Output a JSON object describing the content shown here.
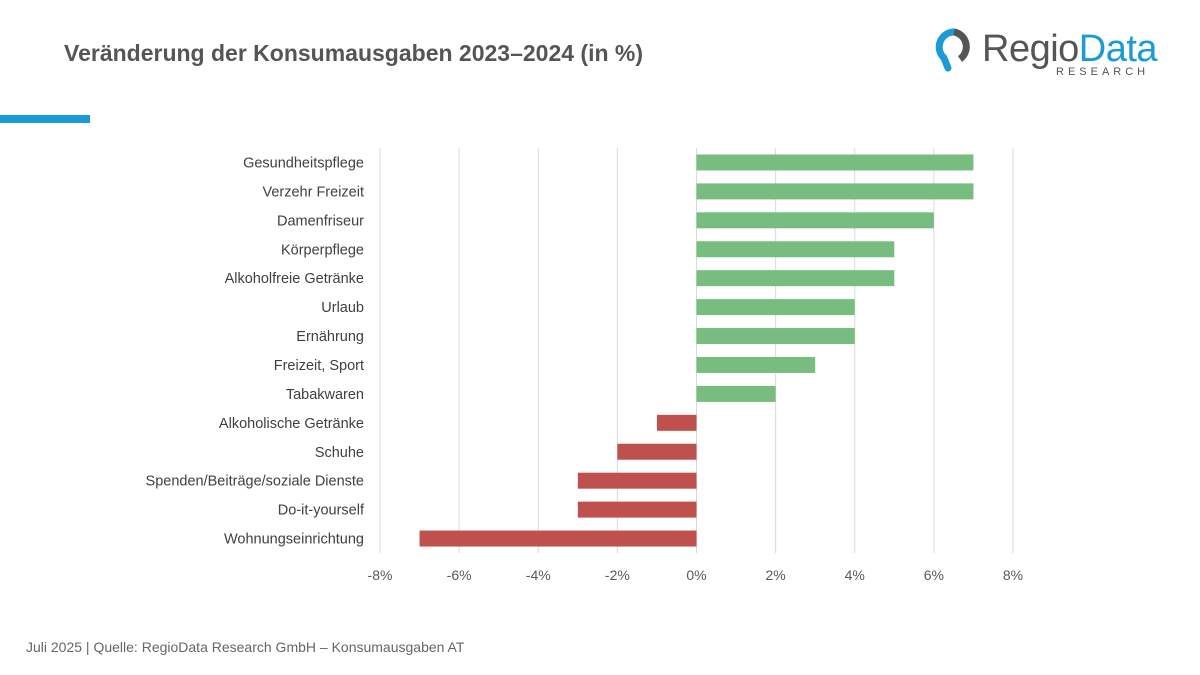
{
  "header": {
    "title": "Veränderung der Konsumausgaben 2023–2024 (in %)"
  },
  "logo": {
    "text_main": "Regio",
    "text_accent": "Data",
    "sub": "RESEARCH"
  },
  "footer": {
    "text": "Juli 2025 | Quelle: RegioData Research GmbH – Konsumausgaben AT"
  },
  "colors": {
    "positive": "#77bd7f",
    "negative": "#c0504d",
    "accent": "#1a9ad6"
  },
  "chart_data": {
    "type": "bar",
    "orientation": "horizontal",
    "title": "Veränderung der Konsumausgaben 2023–2024 (in %)",
    "categories": [
      "Gesundheitspflege",
      "Verzehr Freizeit",
      "Damenfriseur",
      "Körperpflege",
      "Alkoholfreie Getränke",
      "Urlaub",
      "Ernährung",
      "Freizeit, Sport",
      "Tabakwaren",
      "Alkoholische Getränke",
      "Schuhe",
      "Spenden/Beiträge/soziale Dienste",
      "Do-it-yourself",
      "Wohnungseinrichtung"
    ],
    "values": [
      7,
      7,
      6,
      5,
      5,
      4,
      4,
      3,
      2,
      -1,
      -2,
      -3,
      -3,
      -7
    ],
    "xlim": [
      -8,
      8
    ],
    "xticks": [
      -8,
      -6,
      -4,
      -2,
      0,
      2,
      4,
      6,
      8
    ],
    "xtick_labels": [
      "-8%",
      "-6%",
      "-4%",
      "-2%",
      "0%",
      "2%",
      "4%",
      "6%",
      "8%"
    ],
    "grid": "vertical",
    "legend": "none"
  }
}
